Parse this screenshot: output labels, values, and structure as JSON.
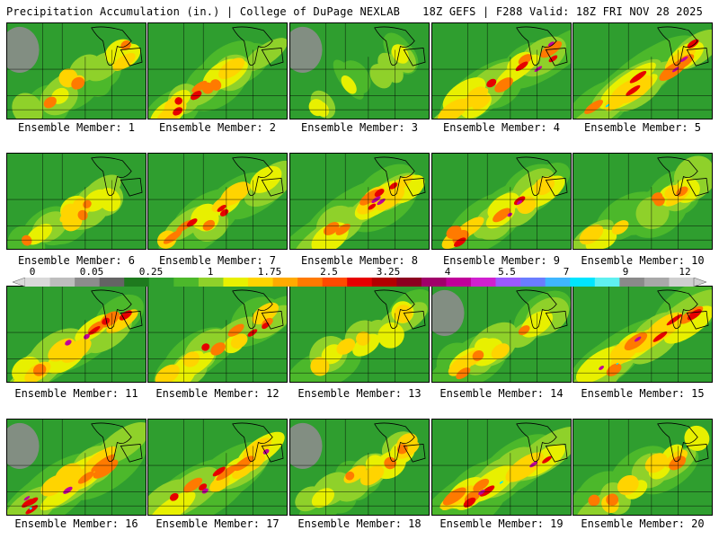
{
  "header": {
    "left": "Precipitation Accumulation (in.) | College of DuPage NEXLAB",
    "right": "18Z GEFS | F288 Valid: 18Z FRI NOV 28 2025"
  },
  "colorbar": {
    "tick_labels": [
      "0",
      "0.05",
      "0.25",
      "1",
      "1.75",
      "2.5",
      "3.25",
      "4",
      "5.5",
      "7",
      "9",
      "12"
    ],
    "colors": [
      "#d9d9d9",
      "#bdbdbd",
      "#8c8c8c",
      "#646464",
      "#1e7a1e",
      "#2f9e2f",
      "#4cb82b",
      "#8fd12a",
      "#e8f000",
      "#ffd400",
      "#ffaa00",
      "#ff7a00",
      "#ff4a00",
      "#e60000",
      "#b30000",
      "#8c0020",
      "#a0006a",
      "#c0009a",
      "#d020d0",
      "#9b59ff",
      "#6a7dff",
      "#3fb6ff",
      "#00e5ff",
      "#5ff0f0",
      "#8a8a8a",
      "#a8a8a8",
      "#cfcfcf"
    ]
  },
  "panels": [
    {
      "label": "Ensemble Member: 1",
      "intensity": 0.45
    },
    {
      "label": "Ensemble Member: 2",
      "intensity": 0.55
    },
    {
      "label": "Ensemble Member: 3",
      "intensity": 0.2
    },
    {
      "label": "Ensemble Member: 4",
      "intensity": 0.7
    },
    {
      "label": "Ensemble Member: 5",
      "intensity": 0.85
    },
    {
      "label": "Ensemble Member: 6",
      "intensity": 0.45
    },
    {
      "label": "Ensemble Member: 7",
      "intensity": 0.6
    },
    {
      "label": "Ensemble Member: 8",
      "intensity": 0.75
    },
    {
      "label": "Ensemble Member: 9",
      "intensity": 0.65
    },
    {
      "label": "Ensemble Member: 10",
      "intensity": 0.5
    },
    {
      "label": "Ensemble Member: 11",
      "intensity": 0.7
    },
    {
      "label": "Ensemble Member: 12",
      "intensity": 0.55
    },
    {
      "label": "Ensemble Member: 13",
      "intensity": 0.4
    },
    {
      "label": "Ensemble Member: 14",
      "intensity": 0.5
    },
    {
      "label": "Ensemble Member: 15",
      "intensity": 0.8
    },
    {
      "label": "Ensemble Member: 16",
      "intensity": 0.8
    },
    {
      "label": "Ensemble Member: 17",
      "intensity": 0.7
    },
    {
      "label": "Ensemble Member: 18",
      "intensity": 0.45
    },
    {
      "label": "Ensemble Member: 19",
      "intensity": 0.8
    },
    {
      "label": "Ensemble Member: 20",
      "intensity": 0.5
    }
  ]
}
